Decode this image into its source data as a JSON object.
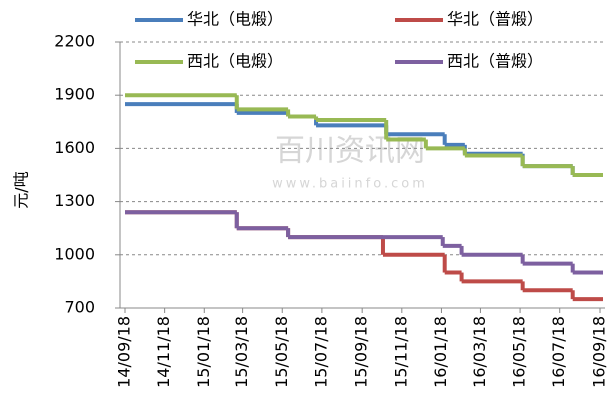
{
  "chart_data": {
    "type": "line",
    "step": true,
    "y_label": "元/吨",
    "watermark": "百川资讯网",
    "watermark_url": "www.baiinfo.com",
    "categories": [
      "14/09/18",
      "14/11/18",
      "15/01/18",
      "15/03/18",
      "15/05/18",
      "15/07/18",
      "15/09/18",
      "15/11/18",
      "16/01/18",
      "16/03/18",
      "16/05/18",
      "16/07/18",
      "16/09/18"
    ],
    "ylim": [
      700,
      2200
    ],
    "yticks": [
      700,
      1000,
      1300,
      1600,
      1900,
      2200
    ],
    "grid": true,
    "series": [
      {
        "name": "华北（电煅）",
        "color": "#4a7ebb",
        "x": [
          "14/09/18",
          "15/03/09",
          "15/05/27",
          "15/07/09",
          "15/10/25",
          "16/01/23",
          "16/02/23",
          "16/05/22",
          "16/08/07",
          "16/09/18"
        ],
        "values": [
          1850,
          1800,
          1780,
          1730,
          1680,
          1620,
          1570,
          1500,
          1450,
          1450
        ]
      },
      {
        "name": "华北（普煅）",
        "color": "#be4b48",
        "x": [
          "14/09/18",
          "15/03/09",
          "15/05/27",
          "15/10/20",
          "16/01/23",
          "16/02/18",
          "16/05/22",
          "16/08/07",
          "16/09/18"
        ],
        "values": [
          1240,
          1150,
          1100,
          1000,
          900,
          850,
          800,
          750,
          750
        ]
      },
      {
        "name": "西北（电煅）",
        "color": "#98b954",
        "x": [
          "14/09/18",
          "15/03/09",
          "15/05/27",
          "15/07/09",
          "15/10/25",
          "15/12/25",
          "16/02/23",
          "16/05/22",
          "16/08/07",
          "16/09/18"
        ],
        "values": [
          1900,
          1820,
          1780,
          1760,
          1650,
          1600,
          1560,
          1500,
          1450,
          1450
        ]
      },
      {
        "name": "西北（普煅）",
        "color": "#7d60a0",
        "x": [
          "14/09/18",
          "15/03/09",
          "15/05/27",
          "16/01/20",
          "16/02/18",
          "16/05/22",
          "16/08/07",
          "16/09/18"
        ],
        "values": [
          1240,
          1150,
          1100,
          1050,
          1000,
          950,
          900,
          900
        ]
      }
    ]
  }
}
